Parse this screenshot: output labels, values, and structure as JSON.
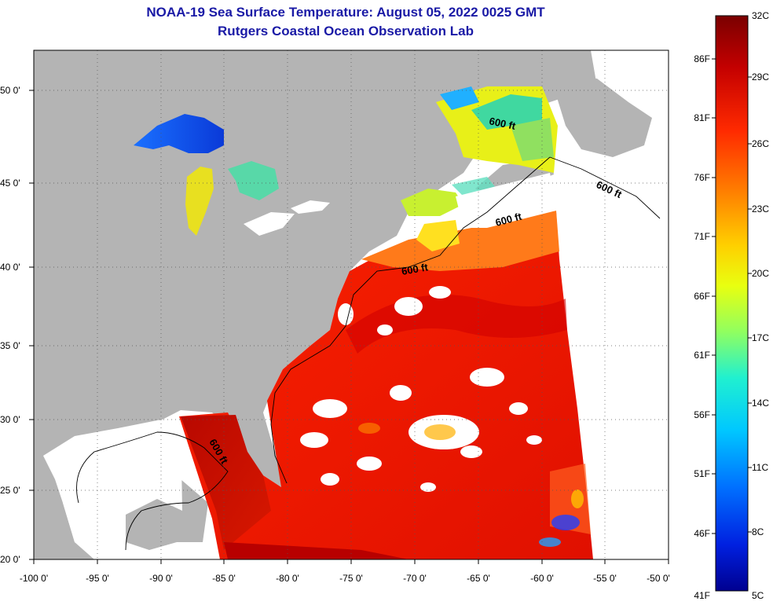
{
  "title_line1": "NOAA-19 Sea Surface Temperature:  August 05, 2022 0025 GMT",
  "title_line2": "Rutgers Coastal Ocean Observation Lab",
  "map": {
    "lon_ticks": [
      "-100 0'",
      "-95 0'",
      "-90 0'",
      "-85 0'",
      "-80 0'",
      "-75 0'",
      "-70 0'",
      "-65 0'",
      "-60 0'",
      "-55 0'",
      "-50 0'"
    ],
    "lat_ticks": [
      "50 0'",
      "45 0'",
      "40 0'",
      "35 0'",
      "30 0'",
      "25 0'",
      "20 0'"
    ],
    "lon_range": [
      -100,
      -50
    ],
    "lat_range": [
      20,
      52.5
    ],
    "grid": "dotted",
    "contour_label": "600 ft",
    "colors": {
      "land": "#b4b4b4",
      "no_data": "#ffffff",
      "title": "#1a1aa6"
    }
  },
  "colorbar": {
    "celsius_labels": [
      "32C",
      "29C",
      "26C",
      "23C",
      "20C",
      "17C",
      "14C",
      "11C",
      "8C",
      "5C"
    ],
    "fahrenheit_labels": [
      "86F",
      "81F",
      "76F",
      "71F",
      "66F",
      "61F",
      "56F",
      "51F",
      "46F",
      "41F"
    ],
    "range_c": [
      5,
      32
    ],
    "colors_top_to_bottom": [
      "#7a0000",
      "#c40000",
      "#ff2a00",
      "#ff7a00",
      "#ffd000",
      "#e8ff10",
      "#90ff60",
      "#20f0d0",
      "#00c8ff",
      "#0070ff",
      "#0020e0",
      "#000090"
    ]
  }
}
